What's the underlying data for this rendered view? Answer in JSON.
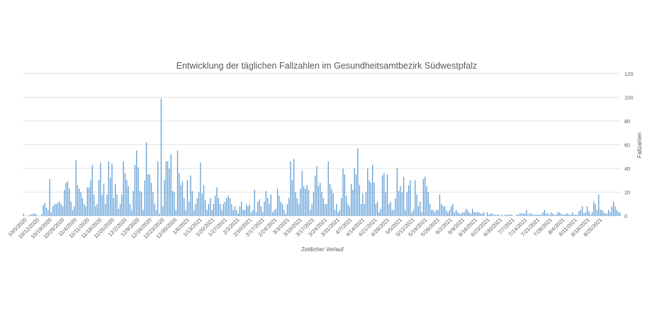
{
  "chart_data": {
    "type": "bar",
    "title": "Entwicklung der täglichen Fallzahlen im Gesundheitsamtbezirk Südwestpfalz",
    "xlabel": "Zeitlicher Verlauf",
    "ylabel": "Fallzahlen",
    "ylim": [
      0,
      120
    ],
    "yticks": [
      0,
      20,
      40,
      60,
      80,
      100,
      120
    ],
    "y_axis_position": "right",
    "grid": true,
    "legend": "none",
    "bar_color": "#5b9bd5",
    "x_tick_labels": [
      "10/5/2020",
      "10/12/2020",
      "10/19/2020",
      "10/26/2020",
      "11/4/2020",
      "11/11/2020",
      "11/18/2020",
      "11/25/2020",
      "12/2/2020",
      "12/9/2020",
      "12/16/2020",
      "12/23/2020",
      "12/30/2020",
      "1/6/2021",
      "1/13/2021",
      "1/20/2021",
      "1/27/2021",
      "2/3/2021",
      "2/10/2021",
      "2/17/2021",
      "2/24/2021",
      "3/3/2021",
      "3/10/2021",
      "3/17/2021",
      "3/24/2021",
      "3/31/2021",
      "4/7/2021",
      "4/14/2021",
      "4/21/2021",
      "4/28/2021",
      "5/5/2021",
      "5/12/2021",
      "5/19/2021",
      "5/26/2021",
      "6/2/2021",
      "6/9/2021",
      "6/16/2021",
      "6/23/2021",
      "6/30/2021",
      "7/7/2021",
      "7/14/2021",
      "7/21/2021",
      "7/28/2021",
      "8/4/2021",
      "8/11/2021",
      "8/18/2021",
      "8/25/2021"
    ],
    "series": [
      {
        "values": [
          2,
          0,
          0,
          0,
          1,
          1,
          2,
          2,
          1,
          0,
          0,
          1,
          9,
          11,
          7,
          5,
          31,
          3,
          8,
          10,
          10,
          11,
          12,
          10,
          8,
          22,
          28,
          29,
          23,
          12,
          5,
          8,
          47,
          26,
          23,
          20,
          15,
          10,
          8,
          24,
          24,
          30,
          43,
          18,
          8,
          10,
          30,
          45,
          18,
          27,
          10,
          18,
          46,
          32,
          44,
          15,
          27,
          18,
          6,
          10,
          18,
          46,
          36,
          30,
          25,
          10,
          5,
          21,
          43,
          55,
          41,
          21,
          20,
          5,
          30,
          62,
          35,
          35,
          28,
          20,
          10,
          5,
          46,
          2,
          99,
          8,
          30,
          46,
          46,
          40,
          52,
          21,
          20,
          5,
          55,
          36,
          26,
          29,
          15,
          5,
          30,
          12,
          34,
          21,
          5,
          10,
          15,
          20,
          45,
          19,
          26,
          13,
          5,
          10,
          15,
          5,
          10,
          17,
          24,
          15,
          10,
          5,
          10,
          12,
          15,
          17,
          15,
          10,
          5,
          8,
          5,
          2,
          8,
          12,
          5,
          5,
          10,
          8,
          10,
          3,
          5,
          22,
          3,
          12,
          14,
          8,
          3,
          12,
          21,
          15,
          10,
          18,
          3,
          5,
          6,
          23,
          17,
          12,
          10,
          5,
          2,
          10,
          15,
          46,
          30,
          48,
          20,
          15,
          10,
          23,
          38,
          25,
          23,
          26,
          22,
          5,
          10,
          20,
          34,
          42,
          25,
          28,
          20,
          15,
          10,
          10,
          46,
          27,
          23,
          19,
          5,
          10,
          3,
          5,
          15,
          40,
          35,
          17,
          10,
          8,
          27,
          22,
          40,
          35,
          57,
          26,
          10,
          19,
          10,
          20,
          40,
          30,
          28,
          43,
          28,
          10,
          12,
          3,
          6,
          34,
          36,
          20,
          35,
          10,
          12,
          5,
          5,
          15,
          40,
          21,
          25,
          20,
          33,
          5,
          20,
          26,
          30,
          3,
          5,
          30,
          18,
          8,
          12,
          3,
          31,
          33,
          25,
          20,
          10,
          5,
          5,
          3,
          5,
          5,
          18,
          10,
          8,
          8,
          5,
          3,
          5,
          8,
          10,
          3,
          5,
          3,
          2,
          2,
          3,
          3,
          6,
          5,
          3,
          2,
          6,
          3,
          3,
          3,
          3,
          2,
          2,
          3,
          0,
          3,
          1,
          2,
          2,
          1,
          1,
          1,
          1,
          0,
          1,
          0,
          1,
          1,
          1,
          1,
          1,
          0,
          0,
          1,
          1,
          2,
          2,
          2,
          2,
          5,
          1,
          2,
          2,
          1,
          1,
          1,
          1,
          1,
          1,
          3,
          5,
          2,
          2,
          1,
          3,
          2,
          1,
          1,
          3,
          3,
          2,
          1,
          1,
          2,
          2,
          1,
          1,
          3,
          1,
          1,
          1,
          4,
          5,
          8,
          2,
          3,
          8,
          4,
          1,
          3,
          12,
          10,
          5,
          18,
          5,
          5,
          3,
          2,
          2,
          5,
          3,
          8,
          12,
          8,
          5,
          3,
          3
        ]
      }
    ]
  }
}
